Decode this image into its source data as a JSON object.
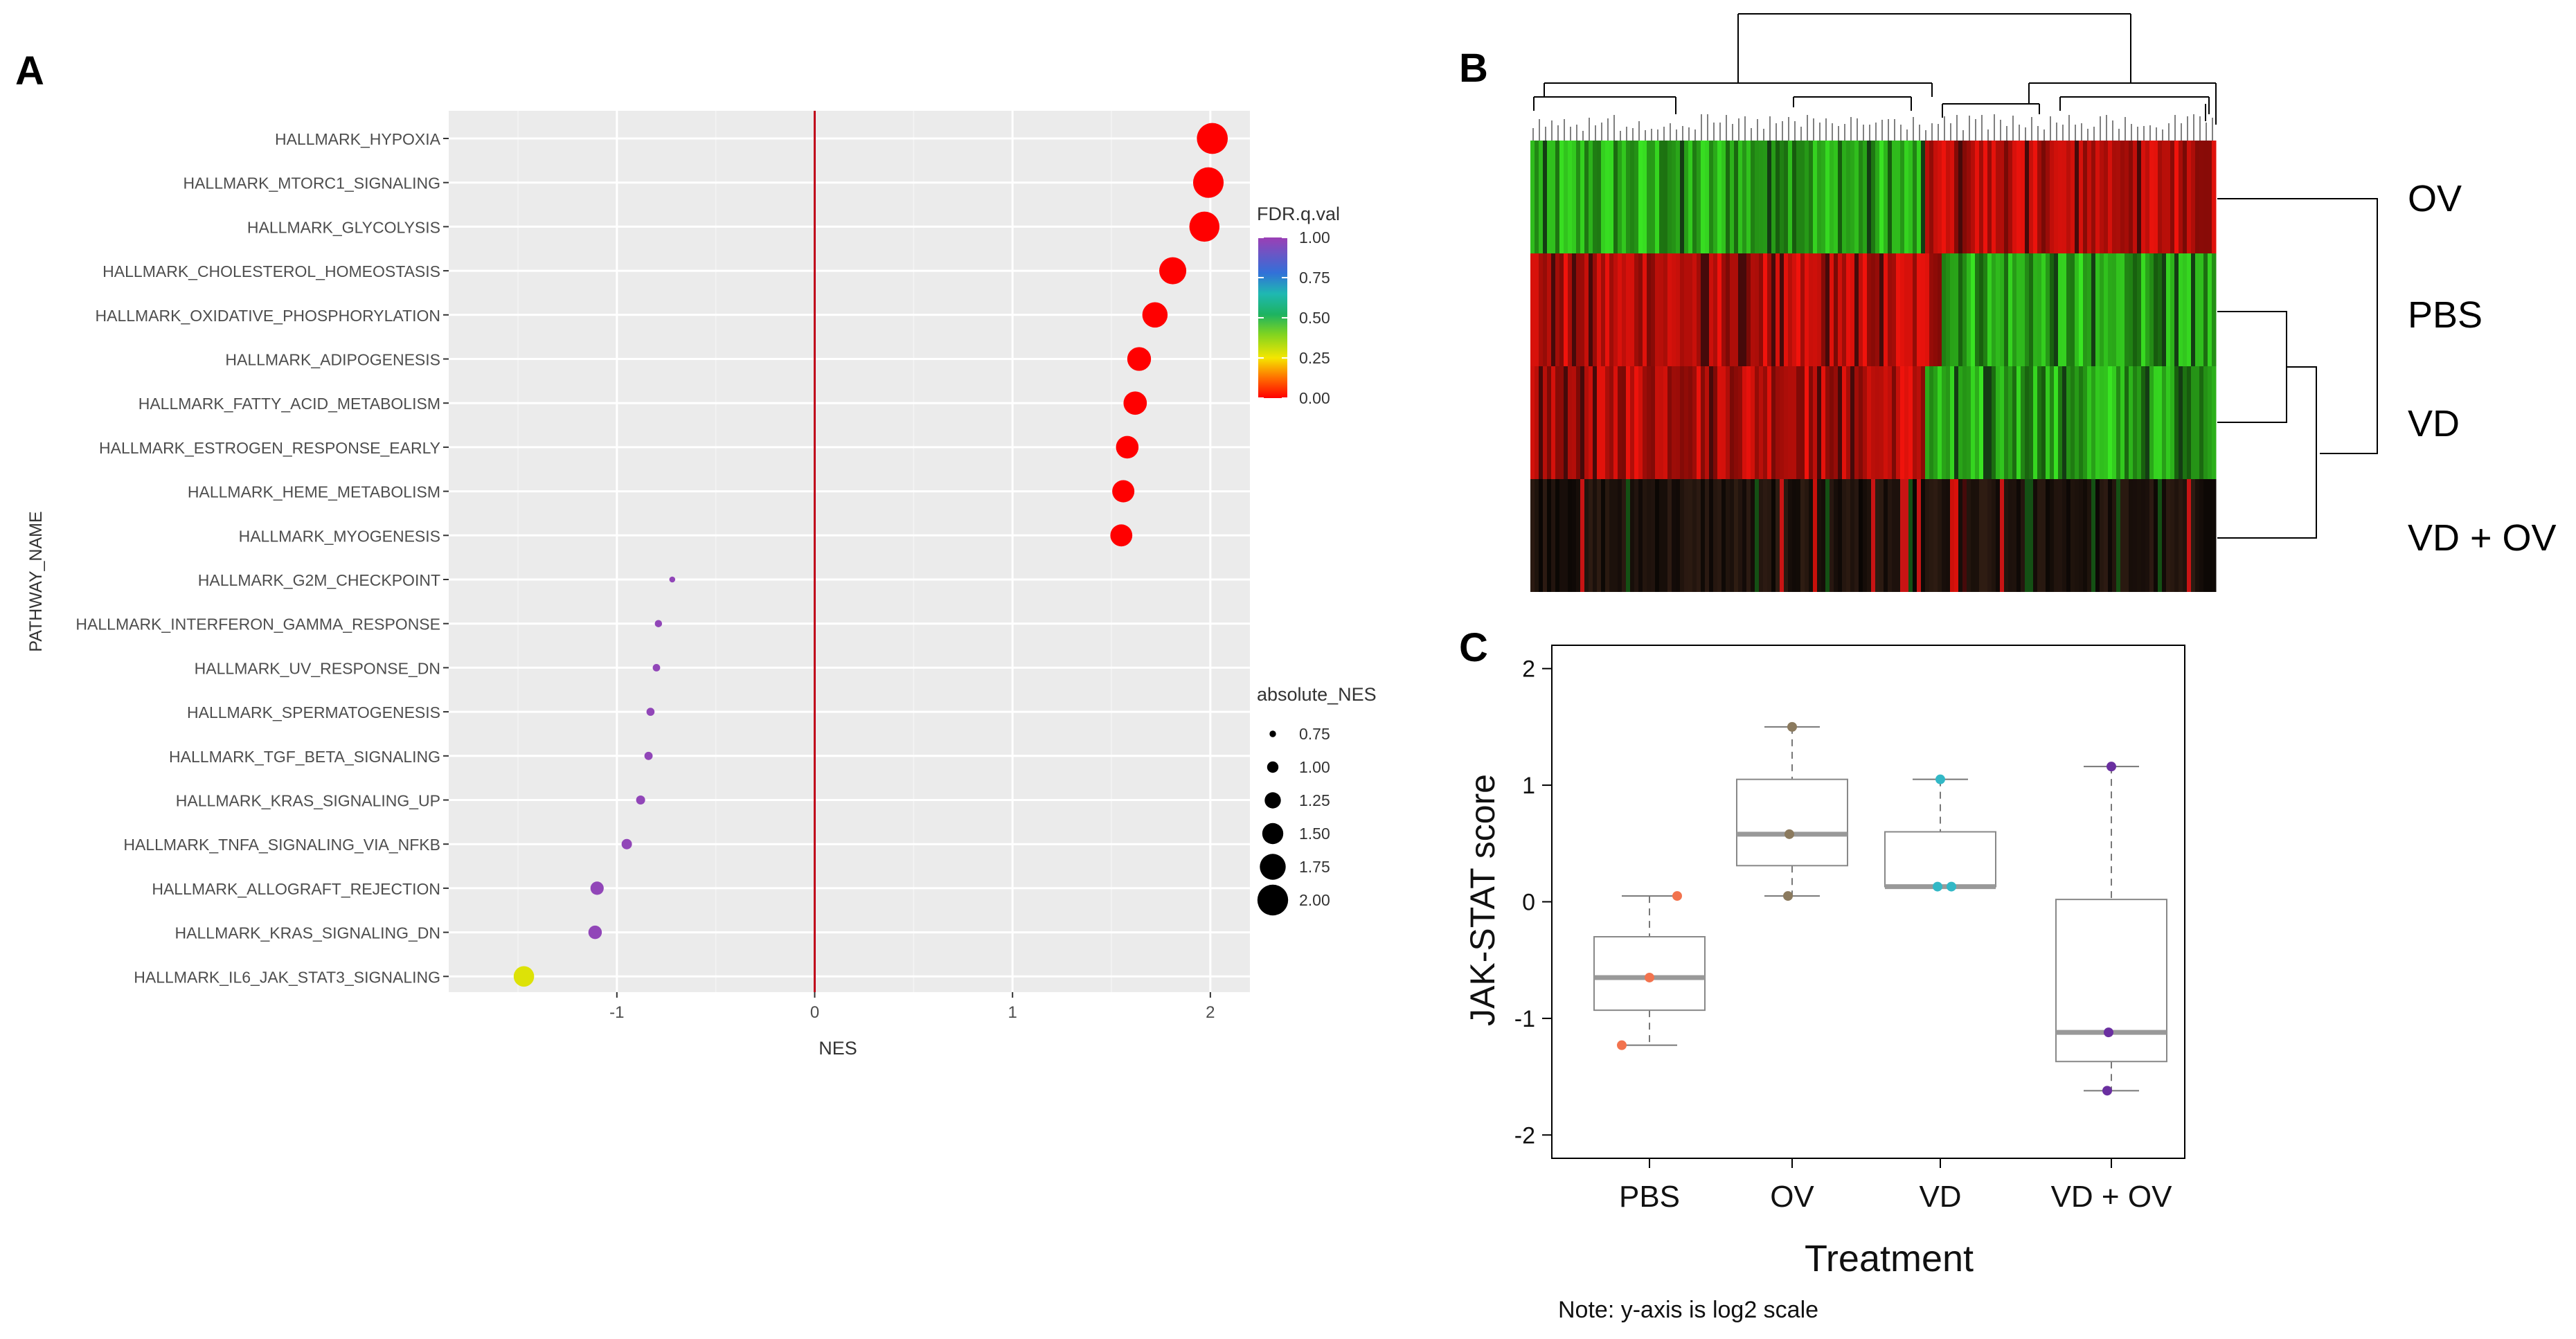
{
  "panels": {
    "a": "A",
    "b": "B",
    "c": "C"
  },
  "chart_data": [
    {
      "type": "scatter",
      "panel": "A",
      "xlabel": "NES",
      "ylabel": "PATHWAY_NAME",
      "xlim": [
        -1.85,
        2.2
      ],
      "xticks": [
        -1,
        0,
        1,
        2
      ],
      "reference_line": {
        "x": 0,
        "color": "#c0001a"
      },
      "points": [
        {
          "pathway": "HALLMARK_HYPOXIA",
          "nes": 2.01,
          "fdr": 0.0
        },
        {
          "pathway": "HALLMARK_MTORC1_SIGNALING",
          "nes": 1.99,
          "fdr": 0.0
        },
        {
          "pathway": "HALLMARK_GLYCOLYSIS",
          "nes": 1.97,
          "fdr": 0.0
        },
        {
          "pathway": "HALLMARK_CHOLESTEROL_HOMEOSTASIS",
          "nes": 1.81,
          "fdr": 0.0
        },
        {
          "pathway": "HALLMARK_OXIDATIVE_PHOSPHORYLATION",
          "nes": 1.72,
          "fdr": 0.0
        },
        {
          "pathway": "HALLMARK_ADIPOGENESIS",
          "nes": 1.64,
          "fdr": 0.0
        },
        {
          "pathway": "HALLMARK_FATTY_ACID_METABOLISM",
          "nes": 1.62,
          "fdr": 0.0
        },
        {
          "pathway": "HALLMARK_ESTROGEN_RESPONSE_EARLY",
          "nes": 1.58,
          "fdr": 0.0
        },
        {
          "pathway": "HALLMARK_HEME_METABOLISM",
          "nes": 1.56,
          "fdr": 0.0
        },
        {
          "pathway": "HALLMARK_MYOGENESIS",
          "nes": 1.55,
          "fdr": 0.0
        },
        {
          "pathway": "HALLMARK_G2M_CHECKPOINT",
          "nes": -0.72,
          "fdr": 1.0
        },
        {
          "pathway": "HALLMARK_INTERFERON_GAMMA_RESPONSE",
          "nes": -0.79,
          "fdr": 1.0
        },
        {
          "pathway": "HALLMARK_UV_RESPONSE_DN",
          "nes": -0.8,
          "fdr": 1.0
        },
        {
          "pathway": "HALLMARK_SPERMATOGENESIS",
          "nes": -0.83,
          "fdr": 1.0
        },
        {
          "pathway": "HALLMARK_TGF_BETA_SIGNALING",
          "nes": -0.84,
          "fdr": 1.0
        },
        {
          "pathway": "HALLMARK_KRAS_SIGNALING_UP",
          "nes": -0.88,
          "fdr": 1.0
        },
        {
          "pathway": "HALLMARK_TNFA_SIGNALING_VIA_NFKB",
          "nes": -0.95,
          "fdr": 1.0
        },
        {
          "pathway": "HALLMARK_ALLOGRAFT_REJECTION",
          "nes": -1.1,
          "fdr": 1.0
        },
        {
          "pathway": "HALLMARK_KRAS_SIGNALING_DN",
          "nes": -1.11,
          "fdr": 1.0
        },
        {
          "pathway": "HALLMARK_IL6_JAK_STAT3_SIGNALING",
          "nes": -1.47,
          "fdr": 0.28
        }
      ],
      "color_legend": {
        "title": "FDR.q.val",
        "ticks": [
          "1.00",
          "0.75",
          "0.50",
          "0.25",
          "0.00"
        ]
      },
      "size_legend": {
        "title": "absolute_NES",
        "labels": [
          "0.75",
          "1.00",
          "1.25",
          "1.50",
          "1.75",
          "2.00"
        ],
        "values": [
          0.75,
          1.0,
          1.25,
          1.5,
          1.75,
          2.0
        ]
      }
    },
    {
      "type": "heatmap",
      "panel": "B",
      "rows": [
        "OV",
        "PBS",
        "VD",
        "VD + OV"
      ],
      "row_pattern": [
        {
          "left": "green",
          "right": "red"
        },
        {
          "left": "red",
          "right": "green"
        },
        {
          "left": "red",
          "right": "green"
        },
        {
          "left": "dark",
          "right": "dark"
        }
      ]
    },
    {
      "type": "box",
      "panel": "C",
      "xlabel": "Treatment",
      "ylabel": "JAK-STAT score",
      "ylim": [
        -2.2,
        2.2
      ],
      "yticks": [
        2,
        1,
        0,
        -1,
        -2
      ],
      "note": "Note: y-axis is log2 scale",
      "groups": [
        {
          "name": "PBS",
          "min": -1.23,
          "q1": -0.93,
          "median": -0.65,
          "q3": -0.3,
          "max": 0.05,
          "color": "#f2734e",
          "points": [
            0.05,
            -0.65,
            -1.23
          ]
        },
        {
          "name": "OV",
          "min": 0.05,
          "q1": 0.31,
          "median": 0.58,
          "q3": 1.05,
          "max": 1.5,
          "color": "#8b7a5e",
          "points": [
            1.5,
            0.58,
            0.05
          ]
        },
        {
          "name": "VD",
          "min": 0.13,
          "q1": 0.13,
          "median": 0.13,
          "q3": 0.6,
          "max": 1.05,
          "color": "#32b8c6",
          "points": [
            1.05,
            0.13,
            0.13
          ]
        },
        {
          "name": "VD + OV",
          "min": -1.62,
          "q1": -1.37,
          "median": -1.12,
          "q3": 0.02,
          "max": 1.16,
          "color": "#6a2fa0",
          "points": [
            1.16,
            -1.12,
            -1.62
          ]
        }
      ]
    }
  ]
}
